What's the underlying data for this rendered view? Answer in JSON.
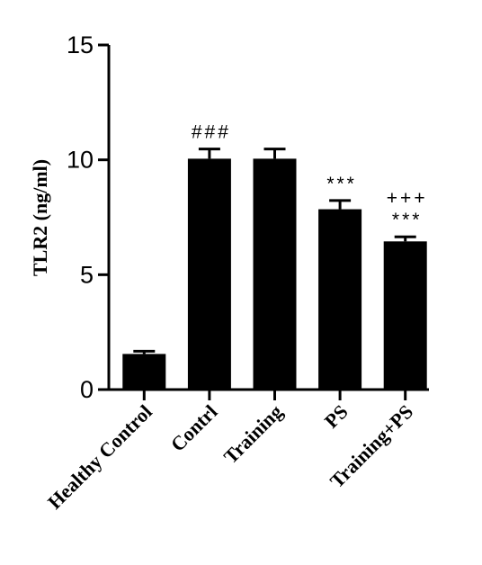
{
  "chart_data": {
    "type": "bar",
    "ylabel": "TLR2 (ng/ml)",
    "xlabel": "",
    "ylim": [
      0,
      15
    ],
    "yticks": [
      "0",
      "5",
      "10",
      "15"
    ],
    "yticks_values": [
      0,
      5,
      10,
      15
    ],
    "grid": false,
    "categories": [
      "Healthy Control",
      "Contrl",
      "Training",
      "PS",
      "Training+PS"
    ],
    "values": [
      1.55,
      10.05,
      10.05,
      7.85,
      6.45
    ],
    "errors": [
      0.12,
      0.42,
      0.42,
      0.38,
      0.2
    ],
    "annotations": [
      {
        "category": "Contrl",
        "lines": [
          "###"
        ]
      },
      {
        "category": "PS",
        "lines": [
          "***"
        ]
      },
      {
        "category": "Training+PS",
        "lines": [
          "+++",
          "***"
        ]
      }
    ],
    "bar_color": "#000000"
  }
}
